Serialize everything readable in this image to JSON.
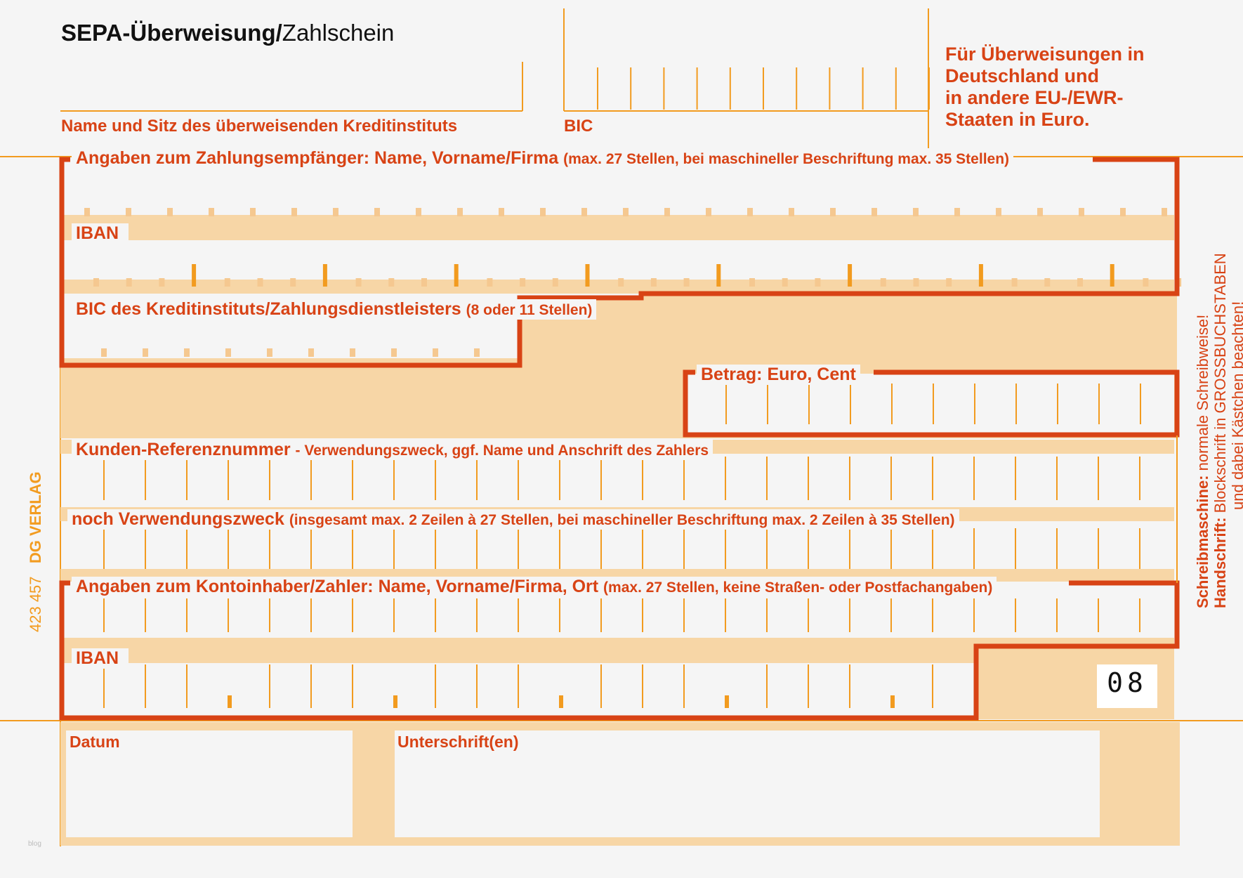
{
  "header": {
    "title_bold": "SEPA-Überweisung/",
    "title_rest": "Zahlschein",
    "bank_label": "Name und Sitz des überweisenden Kreditinstituts",
    "bic_label": "BIC",
    "notice": [
      "Für Überweisungen in",
      "Deutschland und",
      "in andere EU-/EWR-",
      "Staaten in Euro."
    ]
  },
  "payee": {
    "label_main": "Angaben zum Zahlungsempfänger: Name, Vorname/Firma",
    "label_note": "(max. 27 Stellen, bei maschineller Beschriftung max. 35 Stellen)",
    "iban_label": "IBAN",
    "bic_label_main": "BIC des Kreditinstituts/Zahlungsdienstleisters",
    "bic_label_note": "(8 oder 11 Stellen)"
  },
  "amount": {
    "label": "Betrag: Euro, Cent"
  },
  "reference": {
    "label_main": "Kunden-Referenznummer",
    "label_note": "- Verwendungszweck, ggf. Name und Anschrift des Zahlers"
  },
  "purpose2": {
    "label_main": "noch Verwendungszweck",
    "label_note": "(insgesamt max. 2 Zeilen à 27 Stellen, bei maschineller Beschriftung max. 2 Zeilen à 35 Stellen)"
  },
  "payer": {
    "label_main": "Angaben zum Kontoinhaber/Zahler: Name, Vorname/Firma, Ort",
    "label_note": "(max. 27 Stellen, keine Straßen- oder Postfachangaben)",
    "iban_label": "IBAN"
  },
  "form_code": "08",
  "footer": {
    "date_label": "Datum",
    "signature_label": "Unterschrift(en)",
    "side_bold_1": "Schreibmaschine:",
    "side_rest_1": "normale Schreibweise!",
    "side_bold_2": "Handschrift:",
    "side_rest_2": "Blockschrift in GROSSBUCHSTABEN",
    "side_line_3": "und dabei Kästchen beachten!",
    "publisher": "DG VERLAG",
    "form_number": "423 457",
    "small_mark": "blog"
  },
  "colors": {
    "orange": "#f29b1f",
    "red": "#d84315",
    "fill": "#f7d6a6",
    "tick": "#f5c890"
  }
}
